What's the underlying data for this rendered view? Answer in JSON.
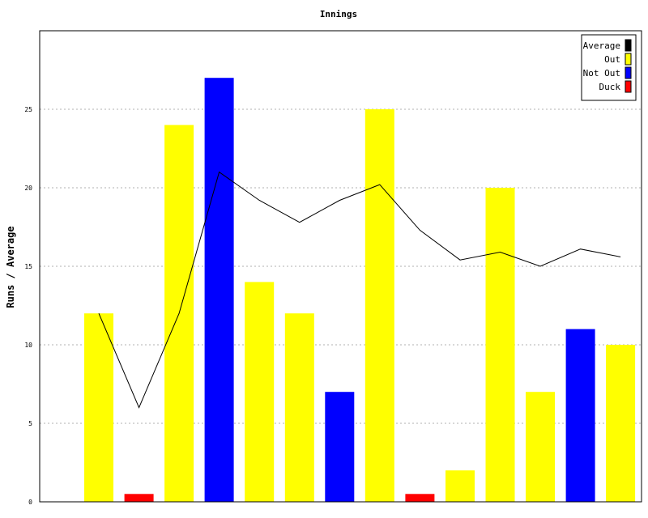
{
  "chart_data": {
    "type": "bar",
    "title": "Innings",
    "xlabel": "",
    "ylabel": "Runs / Average",
    "ylim": [
      0,
      30
    ],
    "yticks": [
      0,
      5,
      10,
      15,
      20,
      25
    ],
    "grid": true,
    "legend_position": "top-right",
    "legend": [
      {
        "label": "Average",
        "color": "#000000"
      },
      {
        "label": "Out",
        "color": "#ffff00"
      },
      {
        "label": "Not Out",
        "color": "#0000ff"
      },
      {
        "label": "Duck",
        "color": "#ff0000"
      }
    ],
    "bars": [
      {
        "value": 12,
        "kind": "Out"
      },
      {
        "value": 0.5,
        "kind": "Duck"
      },
      {
        "value": 24,
        "kind": "Out"
      },
      {
        "value": 27,
        "kind": "Not Out"
      },
      {
        "value": 14,
        "kind": "Out"
      },
      {
        "value": 12,
        "kind": "Out"
      },
      {
        "value": 7,
        "kind": "Not Out"
      },
      {
        "value": 25,
        "kind": "Out"
      },
      {
        "value": 0.5,
        "kind": "Duck"
      },
      {
        "value": 2,
        "kind": "Out"
      },
      {
        "value": 20,
        "kind": "Out"
      },
      {
        "value": 7,
        "kind": "Out"
      },
      {
        "value": 11,
        "kind": "Not Out"
      },
      {
        "value": 10,
        "kind": "Out"
      }
    ],
    "average": [
      12,
      6,
      12,
      21,
      19.2,
      17.8,
      19.2,
      20.2,
      17.3,
      15.4,
      15.9,
      15.0,
      16.1,
      15.6
    ]
  }
}
